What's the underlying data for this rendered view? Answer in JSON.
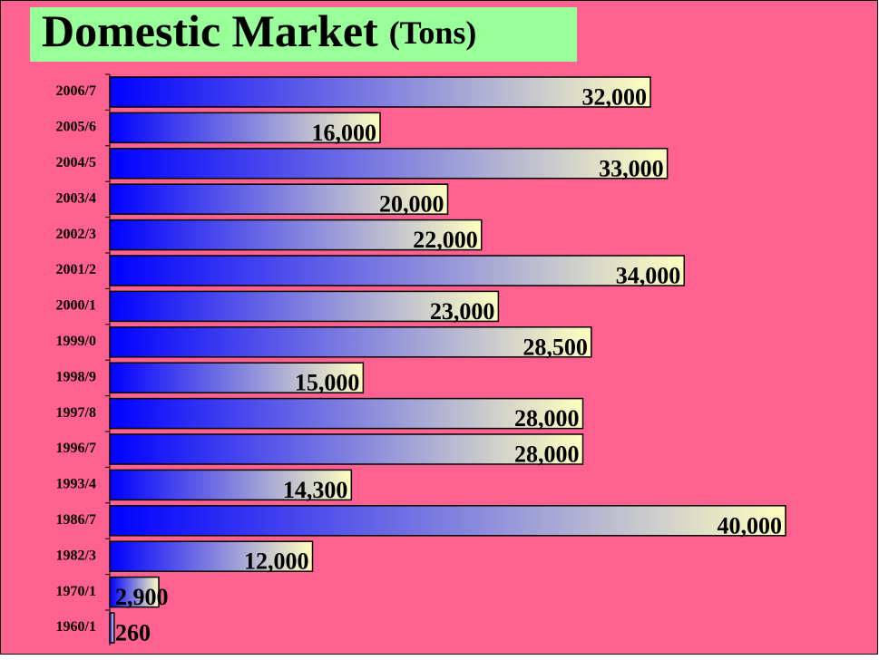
{
  "chart_data": {
    "type": "bar",
    "orientation": "horizontal",
    "title": "Domestic Market",
    "title_unit": "(Tons)",
    "categories": [
      "2006/7",
      "2005/6",
      "2004/5",
      "2003/4",
      "2002/3",
      "2001/2",
      "2000/1",
      "1999/0",
      "1998/9",
      "1997/8",
      "1996/7",
      "1993/4",
      "1986/7",
      "1982/3",
      "1970/1",
      "1960/1"
    ],
    "values": [
      32000,
      16000,
      33000,
      20000,
      22000,
      34000,
      23000,
      28500,
      15000,
      28000,
      28000,
      14300,
      40000,
      12000,
      2900,
      260
    ],
    "value_labels": [
      "32,000",
      "16,000",
      "33,000",
      "20,000",
      "22,000",
      "34,000",
      "23,000",
      "28,500",
      "15,000",
      "28,000",
      "28,000",
      "14,300",
      "40,000",
      "12,000",
      "2,900",
      "260"
    ],
    "color_start": "#0000ff",
    "color_end": "#ffffc0"
  }
}
